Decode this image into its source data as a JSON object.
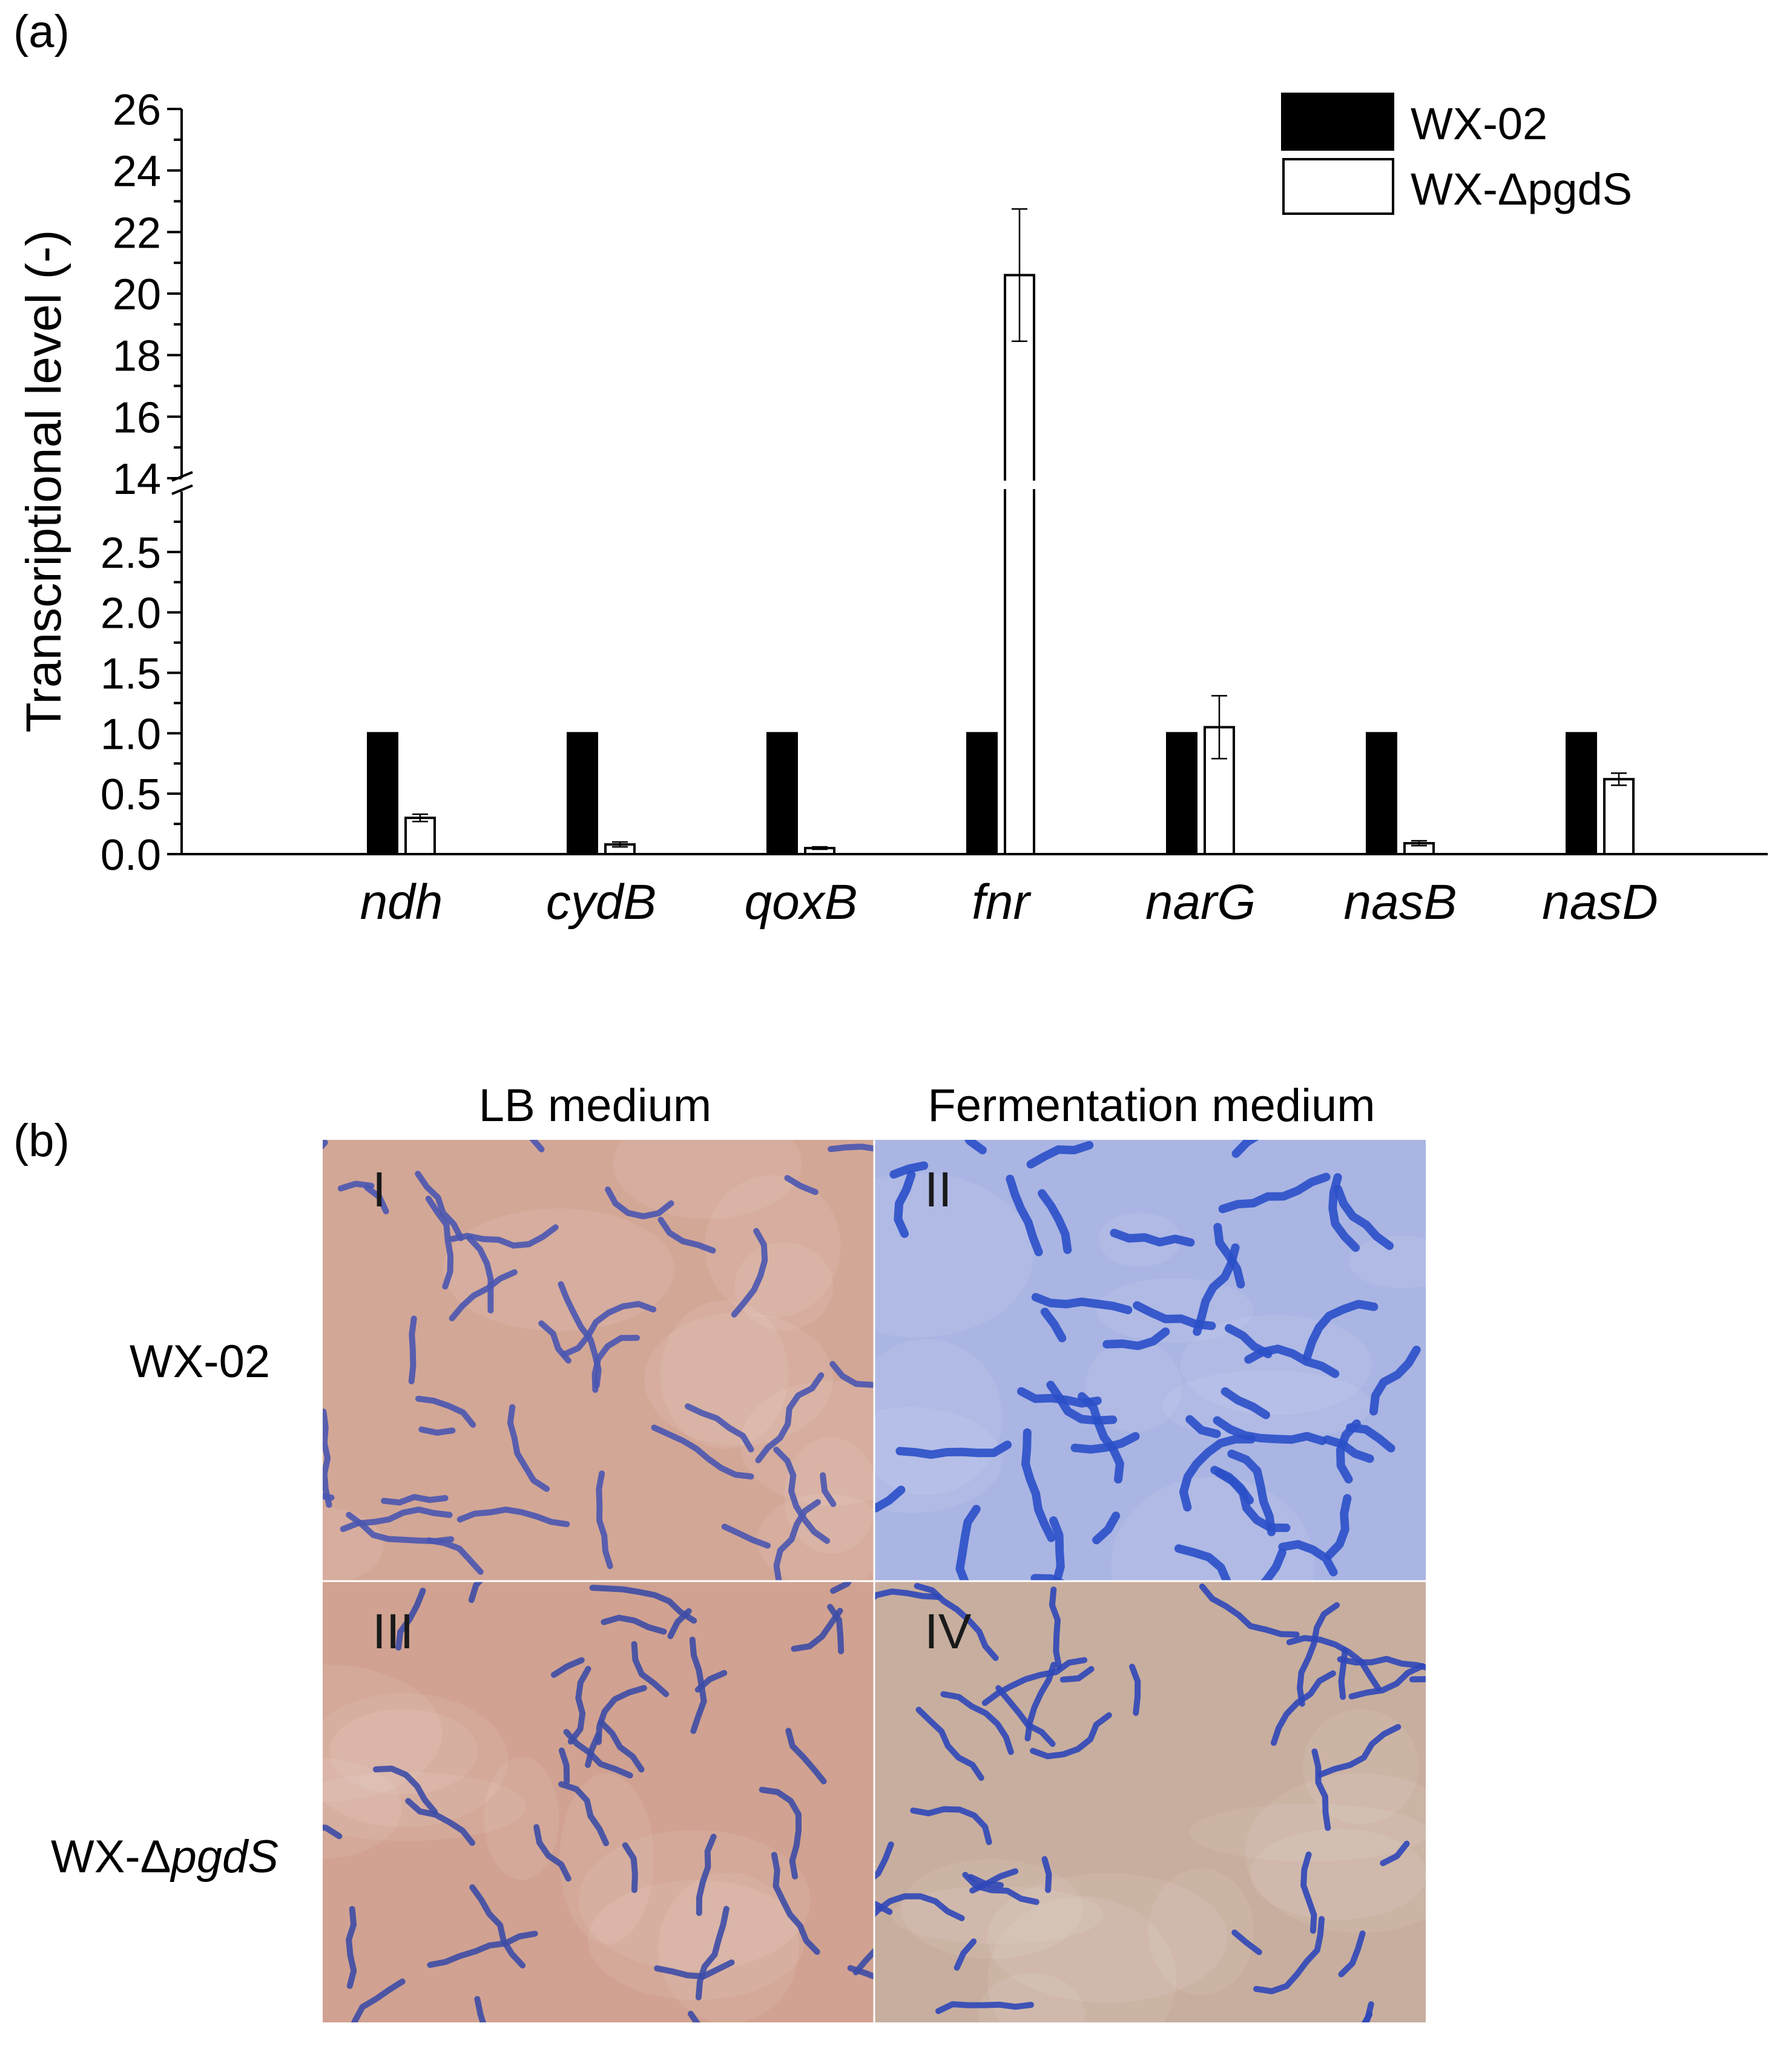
{
  "panel_a_label": "(a)",
  "panel_b_label": "(b)",
  "chart_data": {
    "type": "bar",
    "title": "",
    "xlabel": "",
    "ylabel": "Transcriptional level (-)",
    "categories": [
      "ndh",
      "cydB",
      "qoxB",
      "fnr",
      "narG",
      "nasB",
      "nasD"
    ],
    "series": [
      {
        "name": "WX-02",
        "fill": "#000000",
        "values": [
          1.0,
          1.0,
          1.0,
          1.0,
          1.0,
          1.0,
          1.0
        ],
        "errors": [
          0,
          0,
          0,
          0,
          0,
          0,
          0
        ]
      },
      {
        "name": "WX-ΔpgdS",
        "fill": "#ffffff",
        "values": [
          0.3,
          0.08,
          0.05,
          20.6,
          1.05,
          0.09,
          0.62
        ],
        "errors": [
          0.03,
          0.02,
          0.01,
          2.15,
          0.26,
          0.02,
          0.05
        ]
      }
    ],
    "axis_break": {
      "lower_range": [
        0,
        3.0
      ],
      "upper_range": [
        14,
        26
      ]
    },
    "lower_ticks": [
      "0.0",
      "0.5",
      "1.0",
      "1.5",
      "2.0",
      "2.5"
    ],
    "upper_ticks": [
      "14",
      "16",
      "18",
      "20",
      "22",
      "24",
      "26"
    ],
    "legend_position": "top-right",
    "grid": false
  },
  "panel_b": {
    "column_headers": [
      "LB medium",
      "Fermentation medium"
    ],
    "row_labels": [
      {
        "prefix": "WX-02",
        "italic": ""
      },
      {
        "prefix": "WX-Δ",
        "italic": "pgdS"
      }
    ],
    "panels": [
      {
        "label": "I",
        "bg": "#d3a796",
        "stain": "#4a56b0"
      },
      {
        "label": "II",
        "bg": "#aab5e3",
        "stain": "#2a4fc8"
      },
      {
        "label": "III",
        "bg": "#d1a291",
        "stain": "#3d4ca6"
      },
      {
        "label": "IV",
        "bg": "#c8ae9e",
        "stain": "#2f47b8"
      }
    ]
  }
}
